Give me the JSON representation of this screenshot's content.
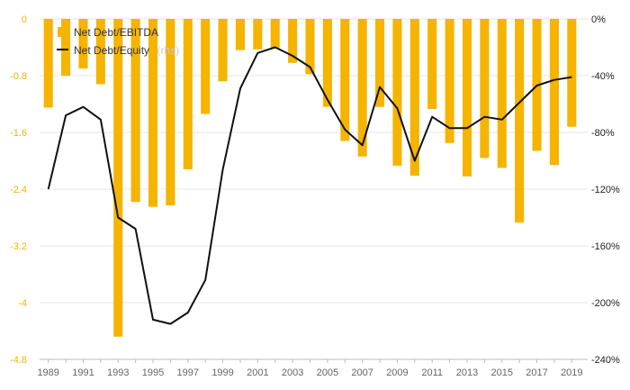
{
  "chart_data": {
    "type": "bar+line",
    "x": [
      1989,
      1990,
      1991,
      1992,
      1993,
      1994,
      1995,
      1996,
      1997,
      1998,
      1999,
      2000,
      2001,
      2002,
      2003,
      2004,
      2005,
      2006,
      2007,
      2008,
      2009,
      2010,
      2011,
      2012,
      2013,
      2014,
      2015,
      2016,
      2017,
      2018,
      2019
    ],
    "x_tick_labels": [
      "1989",
      "1991",
      "1993",
      "1995",
      "1997",
      "1999",
      "2001",
      "2003",
      "2005",
      "2007",
      "2009",
      "2011",
      "2013",
      "2015",
      "2017",
      "2019"
    ],
    "left_axis": {
      "ylim": [
        -4.8,
        0
      ],
      "ticks": [
        0,
        -0.8,
        -1.6,
        -2.4,
        -3.2,
        -4,
        -4.8
      ],
      "tick_labels": [
        "0",
        "-0.8",
        "-1.6",
        "-2.4",
        "-3.2",
        "-4",
        "-4.8"
      ]
    },
    "right_axis": {
      "ylim": [
        -240,
        0
      ],
      "ticks": [
        0,
        -40,
        -80,
        -120,
        -160,
        -200,
        -240
      ],
      "tick_labels": [
        "0%",
        "-40%",
        "-80%",
        "-120%",
        "-160%",
        "-200%",
        "-240%"
      ]
    },
    "grid": true,
    "legend_placement": "top-left",
    "series": [
      {
        "name": "Net Debt/EBITDA",
        "type": "bar",
        "axis": "left",
        "color": "#f5b400",
        "values": [
          -1.25,
          -0.8,
          -0.7,
          -0.92,
          -4.48,
          -2.58,
          -2.65,
          -2.63,
          -2.12,
          -1.34,
          -0.88,
          -0.44,
          -0.43,
          -0.42,
          -0.62,
          -0.78,
          -1.24,
          -1.72,
          -1.94,
          -1.24,
          -2.07,
          -2.21,
          -1.27,
          -1.75,
          -2.22,
          -1.96,
          -2.1,
          -2.87,
          -1.86,
          -2.06,
          -1.52
        ]
      },
      {
        "name": "Net Debt/Equity",
        "note": "(rhs)",
        "type": "line",
        "axis": "right",
        "color": "#111111",
        "values": [
          -120,
          -68,
          -62,
          -71,
          -140,
          -148,
          -212,
          -215,
          -207,
          -184,
          -106,
          -49,
          -24,
          -20,
          -26,
          -34,
          -57,
          -78,
          -89,
          -48,
          -63,
          -100,
          -69,
          -77,
          -77,
          -69,
          -71,
          -59,
          -47,
          -43,
          -41
        ]
      }
    ]
  }
}
